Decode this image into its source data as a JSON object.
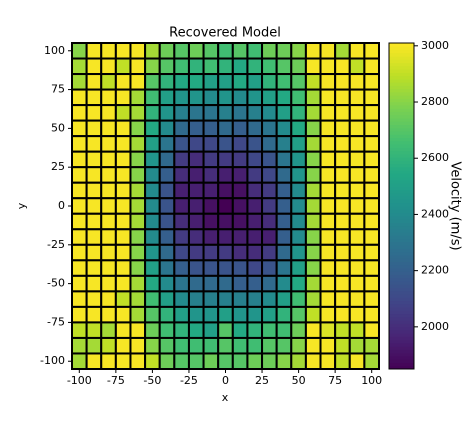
{
  "chart_data": {
    "type": "heatmap",
    "title": "Recovered Model",
    "x_label": "x",
    "y_label": "y",
    "colorbar_label": "Velocity (m/s)",
    "colormap": "viridis",
    "x": [
      -100,
      -90,
      -80,
      -70,
      -60,
      -50,
      -40,
      -30,
      -20,
      -10,
      0,
      10,
      20,
      30,
      40,
      50,
      60,
      70,
      80,
      90,
      100
    ],
    "y": [
      100,
      90,
      80,
      70,
      60,
      50,
      40,
      30,
      20,
      10,
      0,
      -10,
      -20,
      -30,
      -40,
      -50,
      -60,
      -70,
      -80,
      -90,
      -100
    ],
    "z": [
      [
        2800,
        3000,
        3000,
        3000,
        3000,
        2850,
        2750,
        2700,
        2750,
        2700,
        2650,
        2700,
        2650,
        2750,
        2750,
        2800,
        3000,
        3000,
        2850,
        3000,
        3000
      ],
      [
        2850,
        3000,
        3000,
        2900,
        3000,
        2800,
        2700,
        2650,
        2600,
        2650,
        2600,
        2550,
        2600,
        2650,
        2700,
        2750,
        3000,
        3000,
        3000,
        2900,
        3000
      ],
      [
        2850,
        3000,
        2900,
        3000,
        3000,
        2700,
        2600,
        2550,
        2550,
        2500,
        2500,
        2550,
        2500,
        2600,
        2650,
        2700,
        2900,
        3000,
        3000,
        3000,
        3000
      ],
      [
        3000,
        3000,
        3000,
        3000,
        2850,
        2650,
        2500,
        2450,
        2450,
        2400,
        2450,
        2400,
        2450,
        2500,
        2550,
        2650,
        2850,
        3000,
        3000,
        3000,
        3000
      ],
      [
        3000,
        3000,
        3000,
        2900,
        2850,
        2600,
        2450,
        2350,
        2300,
        2300,
        2350,
        2300,
        2350,
        2400,
        2500,
        2600,
        2850,
        3000,
        3000,
        3000,
        3000
      ],
      [
        3000,
        3000,
        3000,
        3000,
        2800,
        2550,
        2400,
        2250,
        2200,
        2200,
        2250,
        2200,
        2250,
        2300,
        2400,
        2550,
        2800,
        3000,
        3000,
        3000,
        3000
      ],
      [
        3000,
        3000,
        3000,
        3000,
        2850,
        2500,
        2300,
        2150,
        2100,
        2100,
        2150,
        2100,
        2150,
        2250,
        2350,
        2500,
        2850,
        3000,
        3000,
        3000,
        3000
      ],
      [
        3000,
        3000,
        3000,
        3000,
        2800,
        2450,
        2250,
        2050,
        2000,
        2050,
        2050,
        2050,
        2100,
        2150,
        2300,
        2450,
        2800,
        3000,
        3000,
        3000,
        3000
      ],
      [
        3000,
        3000,
        3000,
        3000,
        2800,
        2400,
        2200,
        2000,
        1950,
        2000,
        1950,
        1950,
        2050,
        2100,
        2250,
        2450,
        2800,
        3000,
        3000,
        3000,
        3000
      ],
      [
        3000,
        3000,
        3000,
        3000,
        2850,
        2400,
        2150,
        1950,
        1950,
        1950,
        1900,
        1900,
        2000,
        2050,
        2200,
        2400,
        2850,
        3000,
        3000,
        3000,
        3000
      ],
      [
        3000,
        3000,
        3000,
        3000,
        2850,
        2400,
        2150,
        1950,
        1950,
        1900,
        1850,
        1900,
        1950,
        2050,
        2200,
        2400,
        2850,
        3000,
        3000,
        3000,
        3000
      ],
      [
        3000,
        3000,
        3000,
        3000,
        2850,
        2400,
        2150,
        2000,
        1950,
        1900,
        1900,
        1900,
        1950,
        2000,
        2200,
        2400,
        2850,
        3000,
        3000,
        3000,
        3000
      ],
      [
        3000,
        3000,
        3000,
        3000,
        2800,
        2400,
        2200,
        2050,
        2000,
        1950,
        1950,
        1950,
        1950,
        1950,
        2200,
        2400,
        2800,
        3000,
        3000,
        3000,
        3000
      ],
      [
        3000,
        3000,
        3000,
        3000,
        2800,
        2450,
        2250,
        2100,
        2050,
        2050,
        2050,
        2000,
        2000,
        2050,
        2250,
        2450,
        2800,
        3000,
        3000,
        3000,
        3000
      ],
      [
        3000,
        3000,
        3000,
        3000,
        2800,
        2500,
        2300,
        2200,
        2150,
        2150,
        2150,
        2150,
        2100,
        2150,
        2300,
        2500,
        2800,
        3000,
        3000,
        3000,
        3000
      ],
      [
        3000,
        3000,
        3000,
        3000,
        2850,
        2550,
        2400,
        2300,
        2250,
        2250,
        2250,
        2200,
        2200,
        2250,
        2400,
        2550,
        2850,
        3000,
        3000,
        3000,
        3000
      ],
      [
        3000,
        3000,
        3000,
        2900,
        2850,
        2650,
        2500,
        2400,
        2350,
        2350,
        2350,
        2350,
        2350,
        2400,
        2500,
        2650,
        2850,
        3000,
        3000,
        3000,
        3000
      ],
      [
        3000,
        3000,
        3000,
        3000,
        2850,
        2700,
        2600,
        2500,
        2450,
        2450,
        2500,
        2450,
        2450,
        2500,
        2600,
        2700,
        2900,
        3000,
        3000,
        3000,
        3000
      ],
      [
        2900,
        2900,
        2850,
        3000,
        3000,
        2750,
        2650,
        2600,
        2550,
        2500,
        2700,
        2550,
        2600,
        2650,
        2650,
        2750,
        3000,
        2950,
        2900,
        2900,
        3000
      ],
      [
        2850,
        2850,
        2900,
        3000,
        3000,
        2800,
        2700,
        2650,
        2650,
        2650,
        2700,
        2650,
        2650,
        2700,
        2700,
        2800,
        3000,
        3000,
        2900,
        2850,
        2850
      ],
      [
        2850,
        3000,
        3000,
        3000,
        3000,
        2900,
        2750,
        2700,
        2700,
        2750,
        2700,
        2700,
        2750,
        2750,
        2800,
        2850,
        3000,
        3000,
        2900,
        3000,
        2850
      ]
    ],
    "xlim": [
      -105,
      105
    ],
    "ylim": [
      -105,
      105
    ],
    "xticks": [
      -100,
      -75,
      -50,
      -25,
      0,
      25,
      50,
      75,
      100
    ],
    "yticks": [
      -100,
      -75,
      -50,
      -25,
      0,
      25,
      50,
      75,
      100
    ],
    "zlim": [
      1850,
      3010
    ],
    "zticks": [
      2000,
      2200,
      2400,
      2600,
      2800,
      3000
    ]
  }
}
